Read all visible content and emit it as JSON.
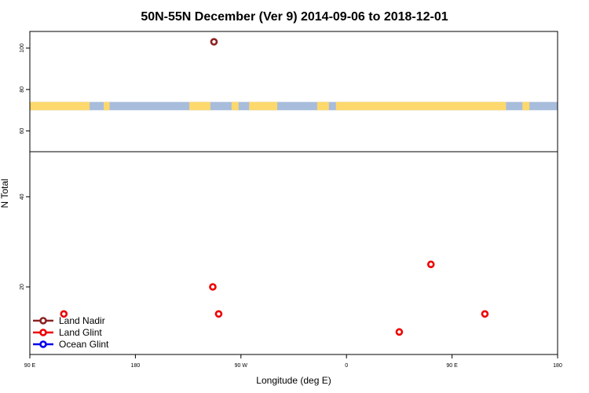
{
  "chart_data": {
    "type": "scatter",
    "title": "50N-55N December (Ver 9)   2014-09-06 to 2018-12-01",
    "xlabel": "Longitude (deg E)",
    "ylabel": "N Total",
    "x_ticks": [
      {
        "value": 90,
        "label": "90 E"
      },
      {
        "value": 180,
        "label": "180"
      },
      {
        "value": 270,
        "label": "90 W"
      },
      {
        "value": 360,
        "label": "0"
      },
      {
        "value": 450,
        "label": "90 E"
      },
      {
        "value": 540,
        "label": "180"
      }
    ],
    "xlim": [
      90,
      540
    ],
    "lower_panel": {
      "ylim": [
        5,
        50
      ],
      "y_ticks": [
        20,
        40
      ]
    },
    "upper_panel": {
      "ylim": [
        50,
        108
      ],
      "y_ticks": [
        60,
        80,
        100
      ]
    },
    "map_strip": {
      "y_range": [
        70,
        74
      ],
      "land_color": "#fdd86c",
      "ocean_color": "#a8bcdc",
      "land_segments": [
        [
          90,
          141
        ],
        [
          153,
          158
        ],
        [
          226,
          244
        ],
        [
          262,
          268
        ],
        [
          277,
          301
        ],
        [
          335,
          345
        ],
        [
          351,
          496
        ],
        [
          510,
          516
        ]
      ]
    },
    "legend": [
      {
        "label": "Land Nadir",
        "color": "#8b2323"
      },
      {
        "label": "Land Glint",
        "color": "#ee0000"
      },
      {
        "label": "Ocean Glint",
        "color": "#0000ee"
      }
    ],
    "series": [
      {
        "name": "Land Nadir",
        "color": "#8b2323",
        "points": [
          {
            "x": 247,
            "y": 103
          }
        ]
      },
      {
        "name": "Land Glint",
        "color": "#ee0000",
        "points": [
          {
            "x": 119,
            "y": 14
          },
          {
            "x": 246,
            "y": 20
          },
          {
            "x": 251,
            "y": 14
          },
          {
            "x": 405,
            "y": 10
          },
          {
            "x": 432,
            "y": 25
          },
          {
            "x": 478,
            "y": 14
          }
        ]
      },
      {
        "name": "Ocean Glint",
        "color": "#0000ee",
        "points": []
      }
    ]
  }
}
